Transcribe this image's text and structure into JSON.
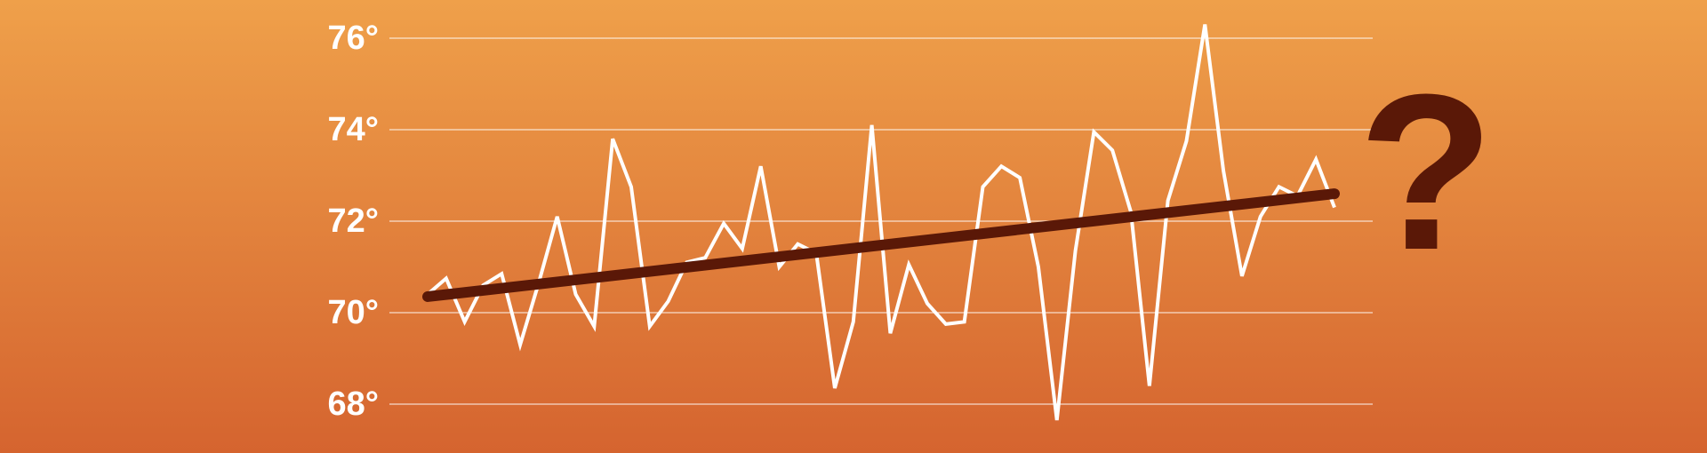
{
  "chart_data": {
    "type": "line",
    "annotation": "?",
    "categories": [
      null,
      null,
      null,
      null,
      null,
      null,
      null,
      null,
      null,
      null,
      null,
      null,
      null,
      null,
      null,
      null,
      null,
      null,
      null,
      null,
      null,
      null,
      null,
      null,
      null,
      null,
      null,
      null,
      null,
      null,
      null,
      null,
      null,
      null,
      null,
      null,
      null,
      null,
      null,
      null,
      null,
      null,
      null,
      null,
      null,
      null,
      null,
      null,
      null,
      null
    ],
    "series": [
      {
        "color": "#ffffff",
        "values": [
          70.4,
          70.75,
          69.8,
          70.6,
          70.85,
          69.3,
          70.65,
          72.1,
          70.4,
          69.7,
          73.8,
          72.75,
          69.7,
          70.25,
          71.1,
          71.2,
          71.95,
          71.4,
          73.2,
          71.0,
          71.5,
          71.3,
          68.35,
          69.8,
          74.1,
          69.55,
          71.05,
          70.2,
          69.75,
          69.8,
          72.75,
          73.2,
          72.95,
          71.0,
          67.65,
          71.35,
          73.95,
          73.55,
          72.2,
          68.4,
          72.45,
          73.75,
          76.3,
          73.1,
          70.8,
          72.1,
          72.75,
          72.55,
          73.35,
          72.3
        ]
      }
    ],
    "trend_line": {
      "color": "#5a1807",
      "values": [
        70.35,
        72.6
      ]
    },
    "ylim": [
      67.5,
      76.5
    ],
    "yticks": [
      {
        "value": 68,
        "label": "68°"
      },
      {
        "value": 70,
        "label": "70°"
      },
      {
        "value": 72,
        "label": "72°"
      },
      {
        "value": 74,
        "label": "74°"
      },
      {
        "value": 76,
        "label": "76°"
      }
    ],
    "grid": true
  }
}
